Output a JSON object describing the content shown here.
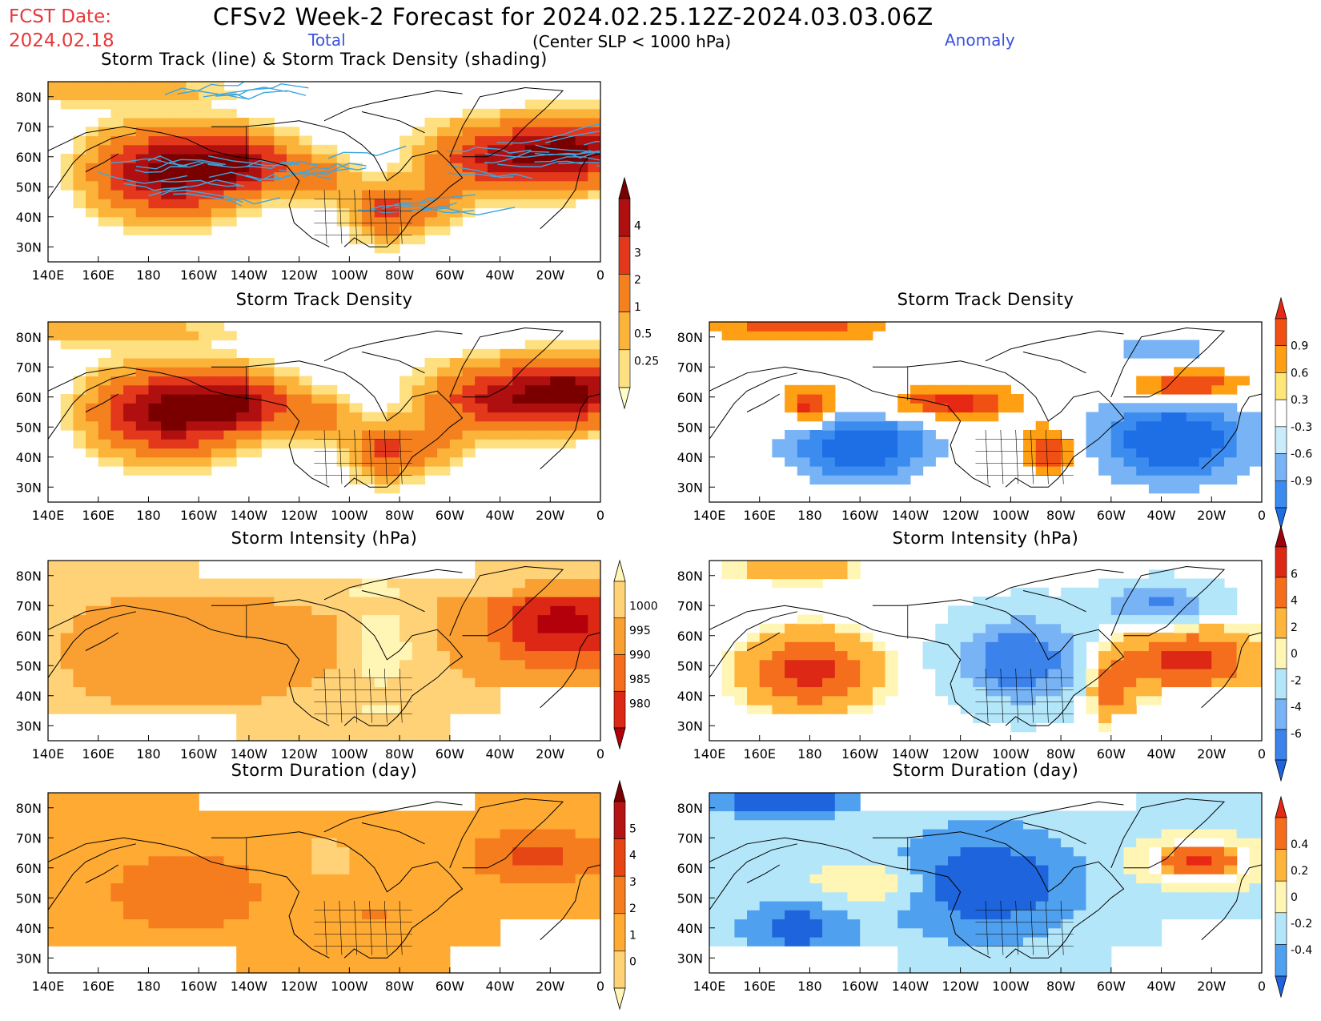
{
  "header": {
    "fcst_label": "FCST Date:",
    "fcst_date": "2024.02.18",
    "title": "CFSv2 Week-2 Forecast for 2024.02.25.12Z-2024.03.03.06Z",
    "subtitle": "(Center SLP < 1000 hPa)",
    "col_total": "Total",
    "col_anomaly": "Anomaly"
  },
  "axes": {
    "lat_ticks": [
      "30N",
      "40N",
      "50N",
      "60N",
      "70N",
      "80N"
    ],
    "lon_ticks": [
      "140E",
      "160E",
      "180",
      "160W",
      "140W",
      "120W",
      "100W",
      "80W",
      "60W",
      "40W",
      "20W",
      "0"
    ]
  },
  "panels": [
    {
      "id": "track-total",
      "title": "Storm Track (line) & Storm Track Density (shading)",
      "kind": "total",
      "variable": "density",
      "tracks": true
    },
    {
      "id": "density-total",
      "title": "Storm Track Density",
      "kind": "total",
      "variable": "density"
    },
    {
      "id": "density-anom",
      "title": "Storm Track Density",
      "kind": "anomaly",
      "variable": "density"
    },
    {
      "id": "intensity-total",
      "title": "Storm Intensity (hPa)",
      "kind": "total",
      "variable": "intensity"
    },
    {
      "id": "intensity-anom",
      "title": "Storm Intensity (hPa)",
      "kind": "anomaly",
      "variable": "intensity"
    },
    {
      "id": "duration-total",
      "title": "Storm Duration (day)",
      "kind": "total",
      "variable": "duration"
    },
    {
      "id": "duration-anom",
      "title": "Storm Duration (day)",
      "kind": "anomaly",
      "variable": "duration"
    }
  ],
  "colorbars": [
    {
      "id": "cb-density-total",
      "labels": [
        "0.25",
        "0.5",
        "1",
        "2",
        "3",
        "4"
      ],
      "colors": [
        "#ffffc8",
        "#ffe080",
        "#fbb33a",
        "#f4801e",
        "#e3381c",
        "#b00f0f",
        "#7a0000"
      ]
    },
    {
      "id": "cb-density-anom",
      "labels": [
        "-0.9",
        "-0.6",
        "-0.3",
        "0.3",
        "0.6",
        "0.9"
      ],
      "colors": [
        "#1e6ee6",
        "#3c8cf0",
        "#78b4f5",
        "#c8ecfa",
        "#ffffff",
        "#ffe678",
        "#ffa014",
        "#f05014",
        "#e62814"
      ]
    },
    {
      "id": "cb-intensity-total",
      "labels": [
        "980",
        "985",
        "990",
        "995",
        "1000"
      ],
      "colors": [
        "#b4000a",
        "#dc2814",
        "#f56e1e",
        "#faa032",
        "#ffd278",
        "#fff5b4"
      ]
    },
    {
      "id": "cb-intensity-anom",
      "labels": [
        "-6",
        "-4",
        "-2",
        "0",
        "2",
        "4",
        "6"
      ],
      "colors": [
        "#1e64dc",
        "#3c82eb",
        "#78b4f5",
        "#b4e6fa",
        "#fff5b4",
        "#ffb43c",
        "#f56e1e",
        "#dc2814",
        "#a0000a"
      ]
    },
    {
      "id": "cb-duration-total",
      "labels": [
        "0",
        "1",
        "2",
        "3",
        "4",
        "5"
      ],
      "colors": [
        "#fff5b4",
        "#ffd278",
        "#ffaa32",
        "#f57d1e",
        "#e64614",
        "#b41414",
        "#7a0000"
      ]
    },
    {
      "id": "cb-duration-anom",
      "labels": [
        "-0.4",
        "-0.2",
        "0",
        "0.2",
        "0.4"
      ],
      "colors": [
        "#1e64dc",
        "#50a0f0",
        "#b4e6fa",
        "#fff5b4",
        "#ffb43c",
        "#f56e1e",
        "#e62814"
      ]
    }
  ]
}
